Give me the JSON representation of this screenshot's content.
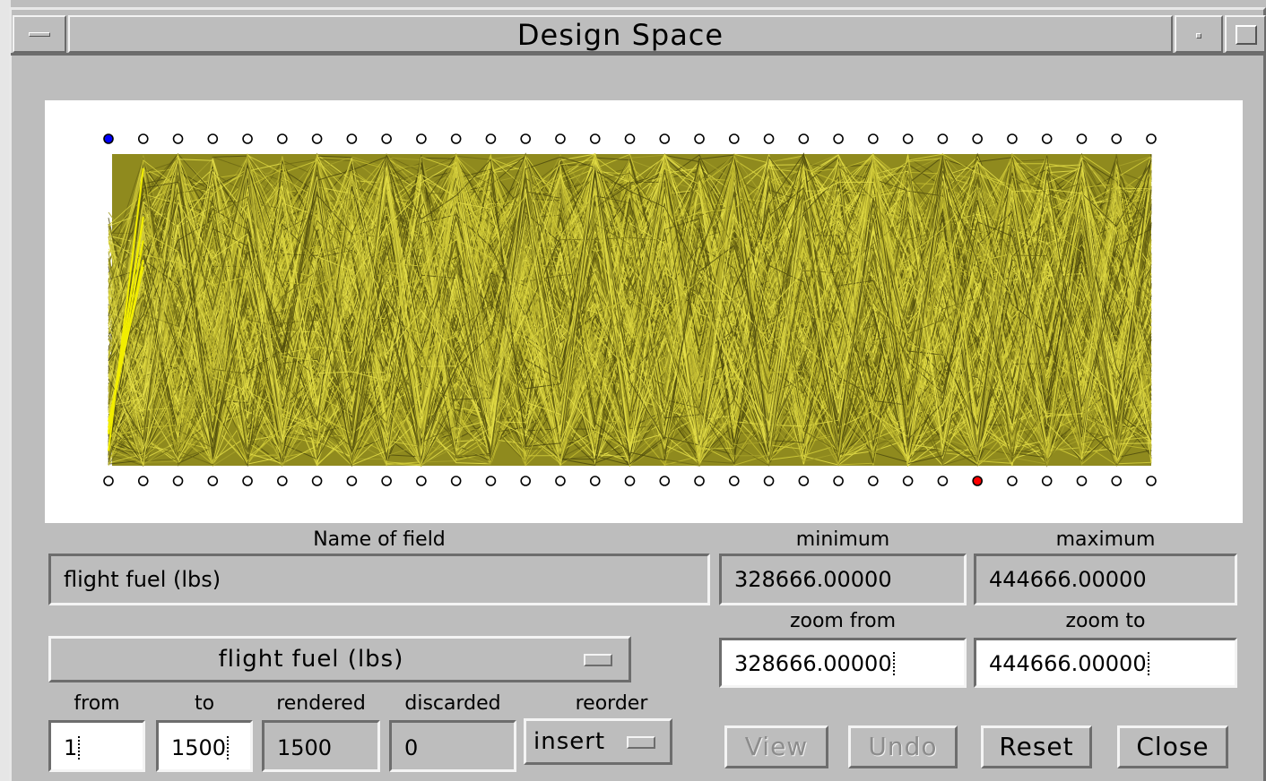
{
  "window": {
    "title": "Design Space"
  },
  "plot": {
    "axis_count": 31,
    "record_count": 1500,
    "colors": {
      "line_base": "#a8a22a",
      "line_dark": "#4f4b0e",
      "line_light": "#e6e04a",
      "highlight_yellow": "#f2ee00",
      "dot_selected_top": "#0000ff",
      "dot_selected_bottom": "#ff0000"
    },
    "selected_top_axis": 0,
    "selected_bottom_axis": 25
  },
  "field": {
    "name_label": "Name of field",
    "name_value": "flight fuel (lbs)",
    "minimum_label": "minimum",
    "minimum_value": "328666.00000",
    "maximum_label": "maximum",
    "maximum_value": "444666.00000",
    "zoom_from_label": "zoom from",
    "zoom_from_value": "328666.00000",
    "zoom_to_label": "zoom to",
    "zoom_to_value": "444666.00000",
    "selector_value": "flight fuel (lbs)"
  },
  "records": {
    "from_label": "from",
    "from_value": "1",
    "to_label": "to",
    "to_value": "1500",
    "rendered_label": "rendered",
    "rendered_value": "1500",
    "discarded_label": "discarded",
    "discarded_value": "0",
    "reorder_label": "reorder",
    "reorder_value": "insert"
  },
  "buttons": {
    "view": "View",
    "undo": "Undo",
    "reset": "Reset",
    "close": "Close"
  }
}
